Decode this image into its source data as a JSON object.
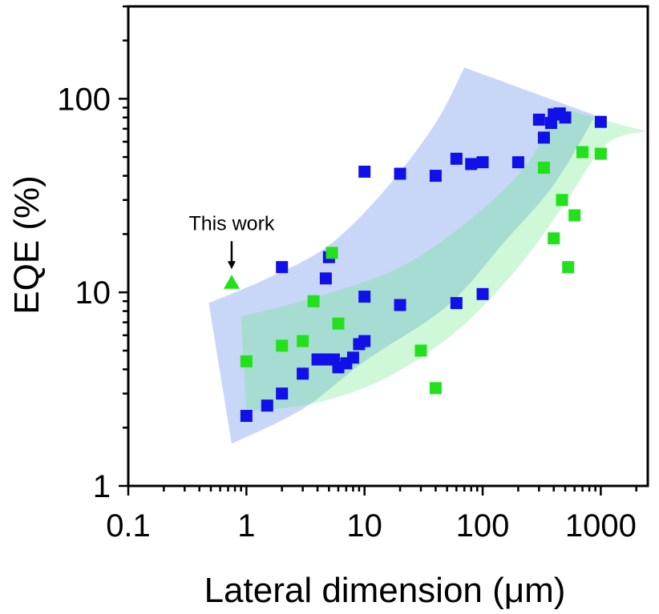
{
  "chart_data": {
    "type": "scatter",
    "xlabel": "Lateral dimension (μm)",
    "ylabel": "EQE (%)",
    "x_scale": "log",
    "y_scale": "log",
    "xlim": [
      0.1,
      2500
    ],
    "ylim": [
      1,
      300
    ],
    "x_ticks": [
      {
        "value": 0.1,
        "label": "0.1"
      },
      {
        "value": 1,
        "label": "1"
      },
      {
        "value": 10,
        "label": "10"
      },
      {
        "value": 100,
        "label": "100"
      },
      {
        "value": 1000,
        "label": "1000"
      }
    ],
    "y_ticks": [
      {
        "value": 1,
        "label": "1"
      },
      {
        "value": 10,
        "label": "10"
      },
      {
        "value": 100,
        "label": "100"
      }
    ],
    "grid": false,
    "series": [
      {
        "color": "#1010e8",
        "marker": "square",
        "points": [
          [
            1,
            2.3
          ],
          [
            1.5,
            2.6
          ],
          [
            2,
            3.0
          ],
          [
            2,
            13.5
          ],
          [
            3,
            3.8
          ],
          [
            4,
            4.5
          ],
          [
            4.5,
            4.5
          ],
          [
            4.7,
            11.8
          ],
          [
            5,
            15.2
          ],
          [
            5.5,
            4.5
          ],
          [
            6,
            4.1
          ],
          [
            7,
            4.3
          ],
          [
            8,
            4.6
          ],
          [
            9,
            5.4
          ],
          [
            10,
            5.6
          ],
          [
            10,
            9.5
          ],
          [
            10,
            42
          ],
          [
            20,
            8.6
          ],
          [
            20,
            41
          ],
          [
            40,
            40
          ],
          [
            60,
            8.8
          ],
          [
            60,
            49
          ],
          [
            80,
            46
          ],
          [
            100,
            47
          ],
          [
            100,
            9.8
          ],
          [
            200,
            47
          ],
          [
            300,
            78
          ],
          [
            330,
            63
          ],
          [
            380,
            75
          ],
          [
            400,
            83
          ],
          [
            450,
            84
          ],
          [
            500,
            80
          ],
          [
            1000,
            76
          ]
        ]
      },
      {
        "color": "#22e01c",
        "marker": "square",
        "points": [
          [
            1,
            4.4
          ],
          [
            2,
            5.3
          ],
          [
            3,
            5.6
          ],
          [
            3.7,
            9.0
          ],
          [
            5.3,
            16
          ],
          [
            6,
            6.9
          ],
          [
            30,
            5.0
          ],
          [
            40,
            3.2
          ],
          [
            330,
            44
          ],
          [
            400,
            19
          ],
          [
            470,
            30
          ],
          [
            530,
            13.5
          ],
          [
            600,
            25
          ],
          [
            700,
            53
          ],
          [
            1000,
            52
          ]
        ]
      },
      {
        "color": "#22e01c",
        "marker": "triangle",
        "points": [
          [
            0.75,
            11.2
          ]
        ]
      }
    ],
    "shaded_bands": [
      {
        "color": "#4a7be8",
        "opacity": 0.3,
        "upper": [
          [
            0.48,
            8.8
          ],
          [
            1.5,
            11.8
          ],
          [
            5,
            17.5
          ],
          [
            15,
            34
          ],
          [
            40,
            75
          ],
          [
            70,
            145
          ]
        ],
        "lower": [
          [
            0.75,
            1.65
          ],
          [
            3,
            2.5
          ],
          [
            10,
            4.4
          ],
          [
            50,
            8.5
          ],
          [
            150,
            18
          ],
          [
            400,
            36
          ],
          [
            900,
            82
          ]
        ]
      },
      {
        "color": "#5de87a",
        "opacity": 0.3,
        "upper": [
          [
            0.9,
            7.5
          ],
          [
            4,
            9.5
          ],
          [
            20,
            13.5
          ],
          [
            80,
            24
          ],
          [
            250,
            48
          ],
          [
            380,
            92
          ]
        ],
        "lower": [
          [
            1,
            2.4
          ],
          [
            4,
            2.7
          ],
          [
            15,
            3.6
          ],
          [
            60,
            6.3
          ],
          [
            200,
            13.5
          ],
          [
            500,
            29
          ],
          [
            1100,
            58
          ],
          [
            2400,
            68
          ]
        ]
      }
    ],
    "annotations": [
      {
        "text": "This work",
        "x": 0.75,
        "y": 11.2
      }
    ]
  }
}
